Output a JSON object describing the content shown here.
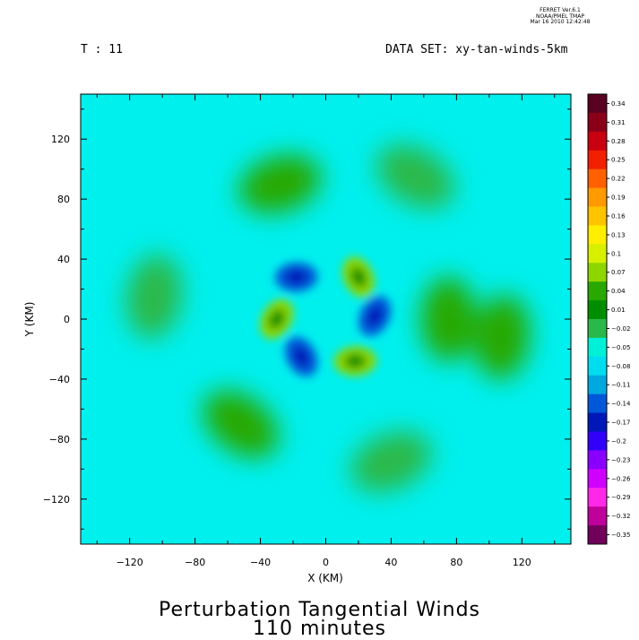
{
  "header": {
    "credit_line1": "FERRET  Ver.6.1",
    "credit_line2": "NOAA/PMEL TMAP",
    "credit_line3": "Mar 16 2010 12:42:48",
    "time_label": "T : 11",
    "dataset_label": "DATA SET: xy-tan-winds-5km"
  },
  "title_line1": "Perturbation Tangential Winds",
  "title_line2": "110 minutes",
  "chart_data": {
    "type": "heatmap",
    "xlabel": "X (KM)",
    "ylabel": "Y (KM)",
    "xlim": [
      -150,
      150
    ],
    "ylim": [
      -150,
      150
    ],
    "x_ticks": [
      -120,
      -80,
      -40,
      0,
      40,
      80,
      120
    ],
    "y_ticks": [
      120,
      80,
      40,
      0,
      -40,
      -80,
      -120
    ],
    "x_tick_labels": [
      "−120",
      "−80",
      "−40",
      "0",
      "40",
      "80",
      "120"
    ],
    "y_tick_labels": [
      "120",
      "80",
      "40",
      "0",
      "−40",
      "−80",
      "−120"
    ],
    "colorbar": {
      "labels": [
        "0.34",
        "0.31",
        "0.28",
        "0.25",
        "0.22",
        "0.19",
        "0.16",
        "0.13",
        "0.1",
        "0.07",
        "0.04",
        "0.01",
        "−0.02",
        "−0.05",
        "−0.08",
        "−0.11",
        "−0.14",
        "−0.17",
        "−0.2",
        "−0.23",
        "−0.26",
        "−0.29",
        "−0.32",
        "−0.35"
      ],
      "colors": [
        "#5a0020",
        "#8a0018",
        "#c80010",
        "#f02000",
        "#ff6000",
        "#ff9a00",
        "#ffc400",
        "#ffee00",
        "#d8f000",
        "#8ed600",
        "#28a800",
        "#008e00",
        "#2ab84a",
        "#00f0d8",
        "#00dcf0",
        "#00a8e0",
        "#0058d8",
        "#0018b8",
        "#3000f8",
        "#8a00ff",
        "#d000ff",
        "#ff28e8",
        "#c0009a",
        "#70005a"
      ]
    },
    "features": [
      {
        "x": -18,
        "y": 28,
        "value": -0.14
      },
      {
        "x": 20,
        "y": 28,
        "value": 0.07
      },
      {
        "x": 30,
        "y": 2,
        "value": -0.14
      },
      {
        "x": 18,
        "y": -28,
        "value": 0.07
      },
      {
        "x": -15,
        "y": -25,
        "value": -0.14
      },
      {
        "x": -30,
        "y": 0,
        "value": 0.07
      },
      {
        "x": -28,
        "y": 90,
        "value": 0.04
      },
      {
        "x": -52,
        "y": -70,
        "value": 0.04
      },
      {
        "x": 75,
        "y": 0,
        "value": 0.04
      },
      {
        "x": 108,
        "y": -12,
        "value": 0.04
      },
      {
        "x": 55,
        "y": 95,
        "value": -0.02
      },
      {
        "x": 40,
        "y": -95,
        "value": -0.02
      },
      {
        "x": -105,
        "y": 15,
        "value": -0.02
      }
    ]
  }
}
